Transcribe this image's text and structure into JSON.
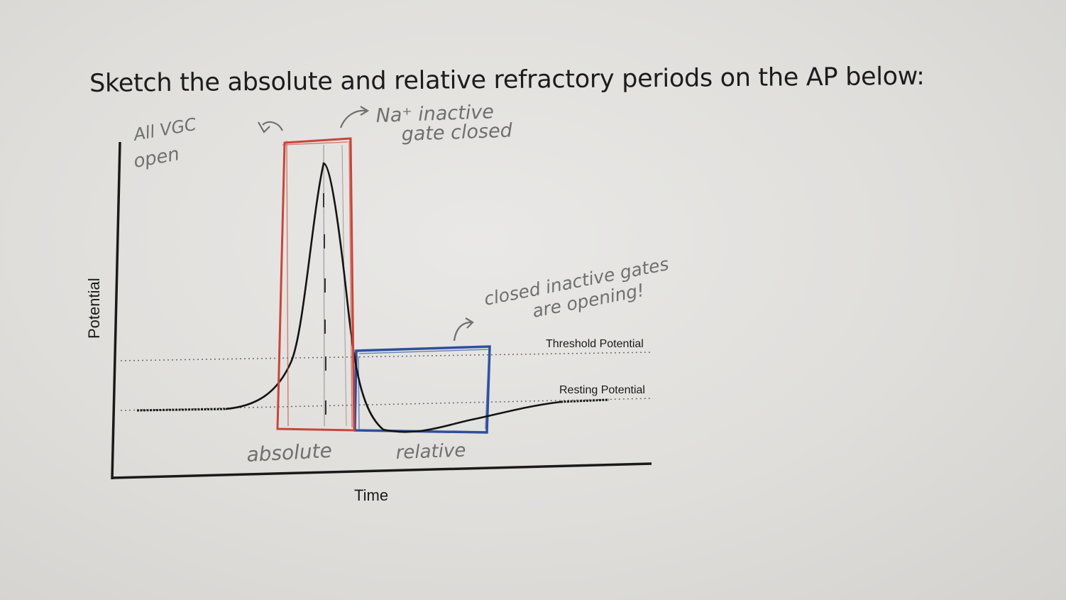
{
  "worksheet": {
    "instruction": "Sketch the absolute and relative refractory periods on the AP below:"
  },
  "graph": {
    "y_axis_label": "Potential",
    "x_axis_label": "Time",
    "threshold_label": "Threshold Potential",
    "resting_label": "Resting Potential"
  },
  "handwriting": {
    "all_vgc_line1": "All VGC",
    "all_vgc_line2": "open",
    "na_line1": "Na⁺ inactive",
    "na_line2": "gate closed",
    "closed_line1": "closed inactive gates",
    "closed_line2": "are opening!",
    "absolute_label": "absolute",
    "relative_label": "relative"
  },
  "colors": {
    "ink": "#1a1a1a",
    "absolute_box": "#c8453a",
    "relative_box": "#2e4f9c",
    "pencil": "#6f6f6f"
  }
}
